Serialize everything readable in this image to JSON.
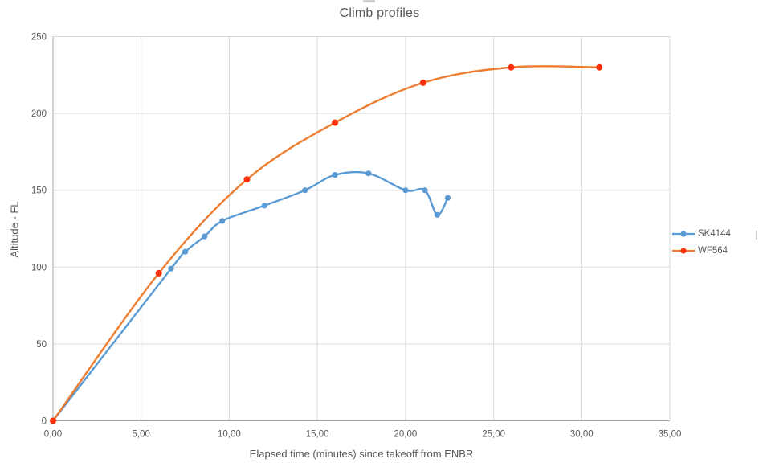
{
  "chart_data": {
    "type": "line",
    "title": "Climb profiles",
    "xlabel": "Elapsed time (minutes) since takeoff from ENBR",
    "ylabel": "Altitude - FL",
    "xlim": [
      0,
      35
    ],
    "ylim": [
      0,
      250
    ],
    "grid": true,
    "smooth_lines": true,
    "legend_position": "right",
    "x_ticks": [
      0,
      5,
      10,
      15,
      20,
      25,
      30,
      35
    ],
    "x_tick_labels": [
      "0,00",
      "5,00",
      "10,00",
      "15,00",
      "20,00",
      "25,00",
      "30,00",
      "35,00"
    ],
    "y_ticks": [
      0,
      50,
      100,
      150,
      200,
      250
    ],
    "y_tick_labels": [
      "0",
      "50",
      "100",
      "150",
      "200",
      "250"
    ],
    "series": [
      {
        "name": "SK4144",
        "line_color": "#5B9BD5",
        "marker_color": "#5B9BD5",
        "marker_radius": 3.6,
        "points": [
          [
            0,
            0
          ],
          [
            6.7,
            99
          ],
          [
            7.5,
            110
          ],
          [
            8.6,
            120
          ],
          [
            9.6,
            130
          ],
          [
            12,
            140
          ],
          [
            14.3,
            150
          ],
          [
            16,
            160
          ],
          [
            17.9,
            161
          ],
          [
            20,
            150
          ],
          [
            21.1,
            150
          ],
          [
            21.8,
            134
          ],
          [
            22.4,
            145
          ]
        ]
      },
      {
        "name": "WF564",
        "line_color": "#ED7D31",
        "marker_color": "#FE2E0A",
        "marker_radius": 4,
        "points": [
          [
            0,
            0
          ],
          [
            6,
            96
          ],
          [
            11,
            157
          ],
          [
            16,
            194
          ],
          [
            21,
            220
          ],
          [
            26,
            230
          ],
          [
            31,
            230
          ]
        ]
      }
    ],
    "colors": {
      "gridline": "#D9D9D9",
      "axis_line": "#A6A6A6",
      "text": "#595959",
      "background": "#FFFFFF"
    }
  }
}
